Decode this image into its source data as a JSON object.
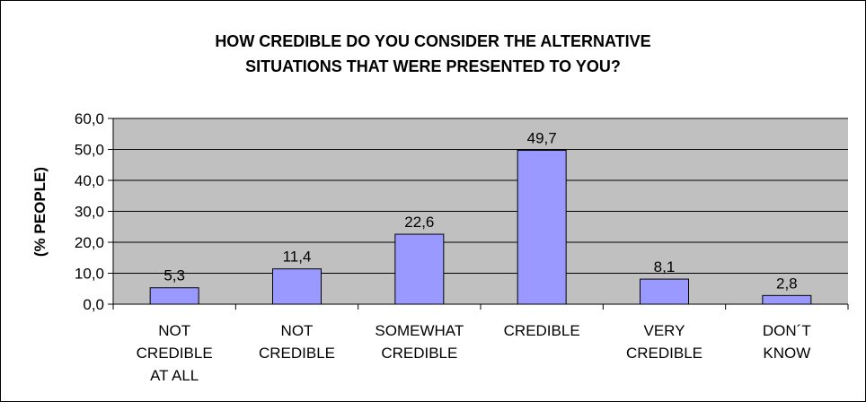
{
  "chart_data": {
    "type": "bar",
    "title_lines": [
      "HOW CREDIBLE DO YOU CONSIDER THE ALTERNATIVE",
      "SITUATIONS THAT WERE PRESENTED TO YOU?"
    ],
    "ylabel": "(% PEOPLE)",
    "xlabel": "",
    "categories": [
      [
        "NOT",
        "CREDIBLE",
        "AT ALL"
      ],
      [
        "NOT",
        "CREDIBLE"
      ],
      [
        "SOMEWHAT",
        "CREDIBLE"
      ],
      [
        "CREDIBLE"
      ],
      [
        "VERY",
        "CREDIBLE"
      ],
      [
        "DON´T",
        "KNOW"
      ]
    ],
    "values": [
      5.3,
      11.4,
      22.6,
      49.7,
      8.1,
      2.8
    ],
    "value_labels": [
      "5,3",
      "11,4",
      "22,6",
      "49,7",
      "8,1",
      "2,8"
    ],
    "ylim": [
      0,
      60
    ],
    "y_ticks": [
      0,
      10,
      20,
      30,
      40,
      50,
      60
    ],
    "y_tick_labels": [
      "0,0",
      "10,0",
      "20,0",
      "30,0",
      "40,0",
      "50,0",
      "60,0"
    ],
    "grid": true,
    "legend": "none",
    "colors": {
      "bar_fill": "#9999ff",
      "bar_stroke": "#000000",
      "plot_background": "#c0c0c0",
      "gridline": "#000000"
    }
  }
}
